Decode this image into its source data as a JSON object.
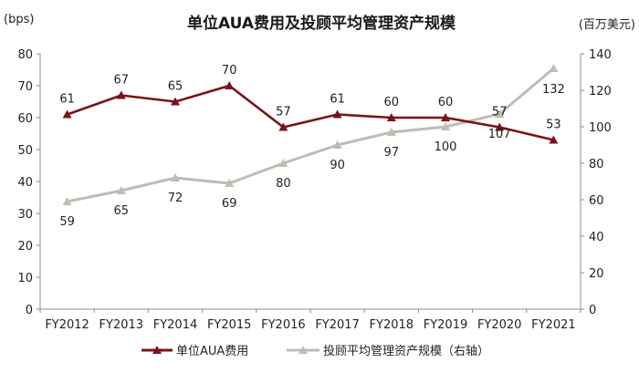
{
  "chart_data": {
    "type": "line",
    "title": "单位AUA费用及投顾平均管理资产规模",
    "left_unit": "(bps)",
    "right_unit": "(百万美元)",
    "categories": [
      "FY2012",
      "FY2013",
      "FY2014",
      "FY2015",
      "FY2016",
      "FY2017",
      "FY2018",
      "FY2019",
      "FY2020",
      "FY2021"
    ],
    "y_left": {
      "min": 0,
      "max": 80,
      "ticks": [
        "0",
        "10",
        "20",
        "30",
        "40",
        "50",
        "60",
        "70",
        "80"
      ]
    },
    "y_right": {
      "min": 0,
      "max": 140,
      "ticks": [
        "0",
        "20",
        "40",
        "60",
        "80",
        "100",
        "120",
        "140"
      ]
    },
    "series": [
      {
        "name": "单位AUA费用",
        "axis": "left",
        "color": "#7a1319",
        "marker": "triangle",
        "values": [
          61,
          67,
          65,
          70,
          57,
          61,
          60,
          60,
          57,
          53
        ],
        "labels": [
          "61",
          "67",
          "65",
          "70",
          "57",
          "61",
          "60",
          "60",
          "57",
          "53"
        ]
      },
      {
        "name": "投顾平均管理资产规模（右轴）",
        "axis": "right",
        "color": "#bdbdb3",
        "marker": "triangle",
        "values": [
          59,
          65,
          72,
          69,
          80,
          90,
          97,
          100,
          107,
          132
        ],
        "labels": [
          "59",
          "65",
          "72",
          "69",
          "80",
          "90",
          "97",
          "100",
          "107",
          "132"
        ]
      }
    ],
    "legend_position": "bottom",
    "grid": false
  }
}
